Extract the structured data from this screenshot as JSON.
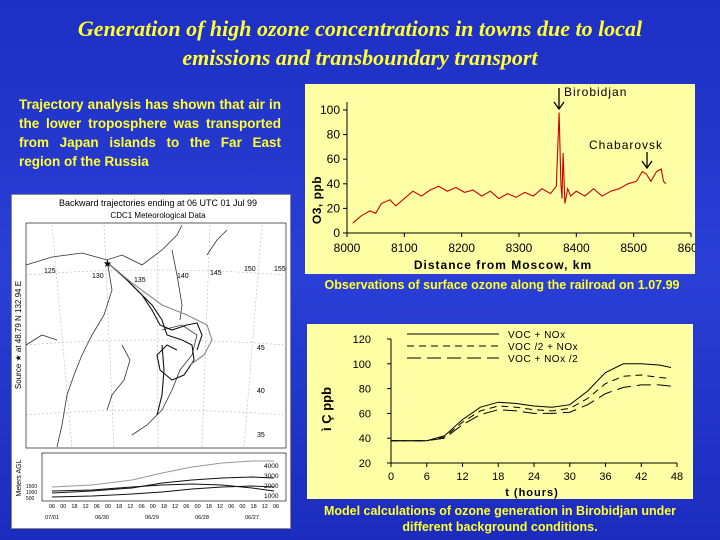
{
  "title_line1": "Generation of high ozone concentrations in towns due to local",
  "title_line2": "emissions and  transboundary transport",
  "intro_text": "Trajectory analysis has shown that air in the lower troposphere was transported from Japan islands to the Far East region of the Russia",
  "caption_top": "Observations of surface ozone along the railroad on 1.07.99",
  "caption_bottom": "Model calculations of ozone generation in Birobidjan under different background conditions.",
  "chart_data": [
    {
      "type": "line",
      "ylabel": "O3, ppb",
      "xlabel": "Distance from Moscow, km",
      "xlim": [
        8000,
        8600
      ],
      "ylim": [
        0,
        100
      ],
      "xticks": [
        "8000",
        "8100",
        "8200",
        "8300",
        "8400",
        "8500",
        "8600"
      ],
      "yticks": [
        "0",
        "20",
        "40",
        "60",
        "80",
        "100"
      ],
      "annotations": [
        "Birobidjan",
        "Chabarovsk"
      ],
      "color": "#cc0000",
      "series": [
        {
          "x": [
            8010,
            8025,
            8040,
            8050,
            8060,
            8075,
            8085,
            8100,
            8115,
            8130,
            8145,
            8160,
            8175,
            8190,
            8205,
            8220,
            8235,
            8250,
            8265,
            8280,
            8295,
            8310,
            8325,
            8340,
            8355,
            8365,
            8370,
            8373,
            8375,
            8377,
            8380,
            8385,
            8390,
            8400,
            8415,
            8430,
            8445,
            8460,
            8475,
            8490,
            8505,
            8515,
            8522,
            8530,
            8540,
            8548,
            8552,
            8556
          ],
          "y": [
            8,
            14,
            18,
            16,
            24,
            27,
            22,
            28,
            34,
            30,
            35,
            38,
            34,
            37,
            33,
            35,
            30,
            34,
            28,
            32,
            29,
            33,
            30,
            36,
            32,
            38,
            98,
            40,
            28,
            65,
            24,
            36,
            30,
            34,
            30,
            36,
            30,
            34,
            36,
            40,
            42,
            50,
            48,
            42,
            50,
            52,
            42,
            40
          ]
        }
      ]
    },
    {
      "type": "line",
      "ylabel": "ì Ç ppb",
      "xlabel": "t (hours)",
      "xlim": [
        0,
        48
      ],
      "ylim": [
        20,
        120
      ],
      "xticks": [
        "0",
        "6",
        "12",
        "18",
        "24",
        "30",
        "36",
        "42",
        "48"
      ],
      "yticks": [
        "20",
        "40",
        "60",
        "80",
        "100",
        "120"
      ],
      "x": [
        0,
        3,
        6,
        9,
        12,
        15,
        18,
        21,
        24,
        27,
        30,
        33,
        36,
        39,
        42,
        45,
        47
      ],
      "series": [
        {
          "name": "VOC + NOx",
          "values": [
            38,
            38,
            38,
            42,
            55,
            65,
            69,
            68,
            66,
            65,
            67,
            78,
            93,
            100,
            100,
            99,
            97
          ]
        },
        {
          "name": "VOC /2 + NOx",
          "values": [
            38,
            38,
            38,
            41,
            53,
            62,
            66,
            65,
            63,
            62,
            64,
            72,
            84,
            90,
            91,
            89,
            88
          ]
        },
        {
          "name": "VOC + NOx /2",
          "values": [
            38,
            38,
            38,
            40,
            51,
            59,
            63,
            62,
            60,
            60,
            61,
            67,
            76,
            81,
            83,
            83,
            82
          ]
        }
      ]
    },
    {
      "type": "map",
      "title": "Backward trajectories ending at 06 UTC 01 Jul 99",
      "subtitle": "CDC1 Meteorological Data",
      "side_label": "Source ★ at 48.79 N 132.94 E",
      "agl_label": "Meters AGL",
      "lon_labels": [
        "125",
        "130",
        "135",
        "140",
        "145",
        "150",
        "155"
      ],
      "lat_labels": [
        "45",
        "40",
        "35"
      ],
      "level_labels": [
        "4000",
        "3000",
        "2000",
        "1000"
      ],
      "left_levels": [
        "1500",
        "1000",
        "500"
      ],
      "time_labels": [
        "06",
        "00",
        "18",
        "12",
        "06",
        "00",
        "18",
        "12",
        "06",
        "00",
        "18",
        "12",
        "06",
        "00",
        "18",
        "12",
        "06",
        "00",
        "18",
        "12",
        "06"
      ],
      "date_labels": [
        "07/01",
        "06/30",
        "06/29",
        "06/28",
        "06/27"
      ]
    }
  ]
}
